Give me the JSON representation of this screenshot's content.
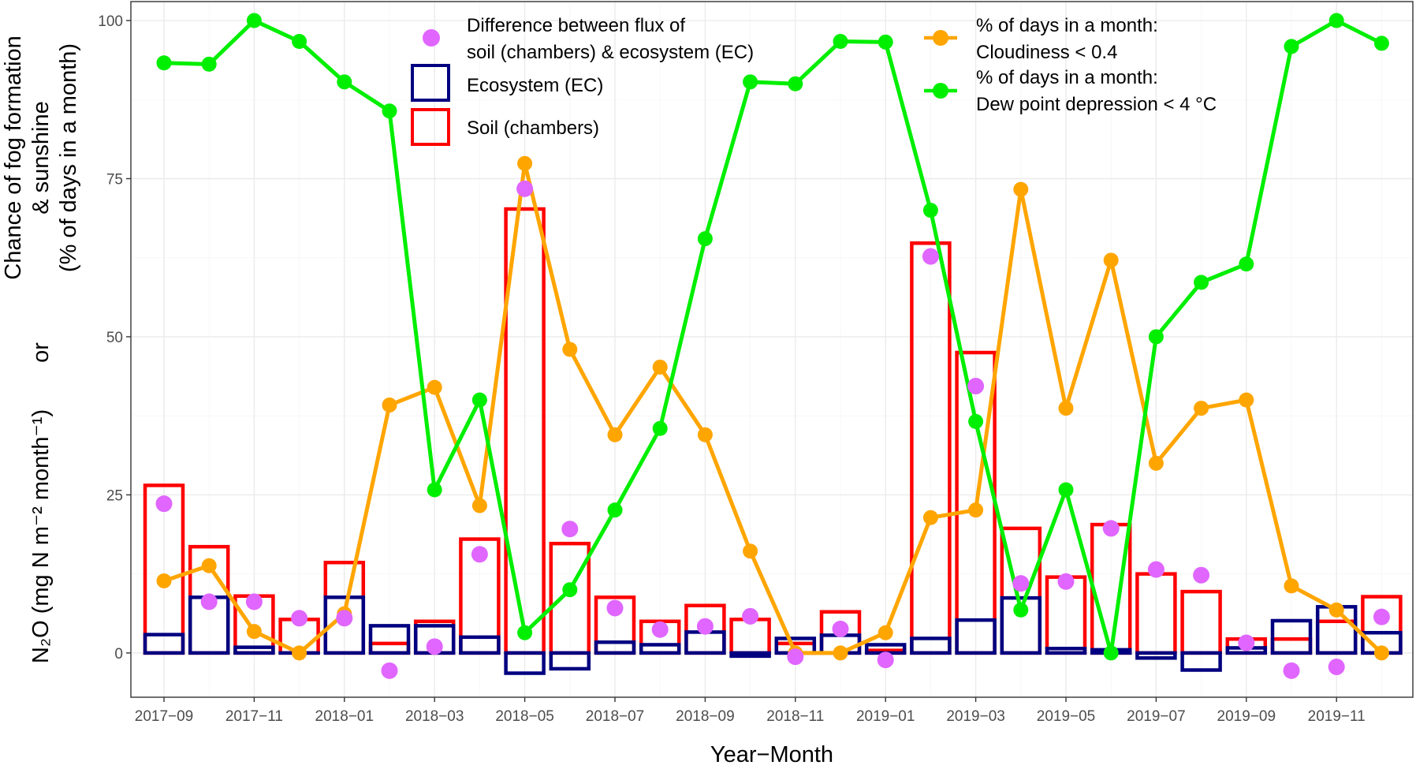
{
  "chart_data": {
    "type": "bar+line+scatter",
    "xlabel": "Year−Month",
    "ylabel_line1": "Chance of fog formation",
    "ylabel_line2": "& sunshine",
    "ylabel_line3": "(% of days in a month)",
    "ylabel_or": "or",
    "ylabel_n2o": "N₂O (mg N m⁻² month⁻¹)",
    "ylim": [
      -7,
      103
    ],
    "y_ticks": [
      0,
      25,
      50,
      75,
      100
    ],
    "y_tick_labels": [
      "0",
      "25",
      "50",
      "75",
      "100"
    ],
    "months": [
      "2017-09",
      "2017-10",
      "2017-11",
      "2017-12",
      "2018-01",
      "2018-02",
      "2018-03",
      "2018-04",
      "2018-05",
      "2018-06",
      "2018-07",
      "2018-08",
      "2018-09",
      "2018-10",
      "2018-11",
      "2018-12",
      "2019-01",
      "2019-02",
      "2019-03",
      "2019-04",
      "2019-05",
      "2019-06",
      "2019-07",
      "2019-08",
      "2019-09",
      "2019-10",
      "2019-11",
      "2019-12"
    ],
    "x_tick_labels": [
      "2017−09",
      "2017−11",
      "2018−01",
      "2018−03",
      "2018−05",
      "2018−07",
      "2018−09",
      "2018−11",
      "2019−01",
      "2019−03",
      "2019−05",
      "2019−07",
      "2019−09",
      "2019−11"
    ],
    "x_tick_index": [
      0,
      2,
      4,
      6,
      8,
      10,
      12,
      14,
      16,
      18,
      20,
      22,
      24,
      26
    ],
    "series": [
      {
        "name": "Soil (chambers)",
        "kind": "bar",
        "color": "#ff0000",
        "values": [
          26.5,
          16.8,
          9.0,
          5.3,
          14.3,
          1.5,
          5.0,
          18.0,
          70.2,
          17.3,
          8.8,
          5.0,
          7.5,
          5.3,
          1.5,
          6.5,
          0.4,
          64.8,
          47.5,
          19.7,
          12.0,
          20.3,
          12.5,
          9.7,
          2.2,
          2.2,
          5.0,
          8.9
        ]
      },
      {
        "name": "Ecosystem (EC)",
        "kind": "bar",
        "color": "#000080",
        "values": [
          2.9,
          8.8,
          0.9,
          0.0,
          8.8,
          4.3,
          4.3,
          2.5,
          -3.2,
          -2.5,
          1.7,
          1.3,
          3.3,
          -0.5,
          2.3,
          2.8,
          1.3,
          2.3,
          5.2,
          8.7,
          0.7,
          0.5,
          -0.8,
          -2.7,
          0.8,
          5.1,
          7.3,
          3.2
        ]
      },
      {
        "name": "Difference between flux of soil (chambers) & ecosystem (EC)",
        "kind": "scatter",
        "color": "#e066ff",
        "values": [
          23.6,
          8.1,
          8.1,
          5.5,
          5.5,
          -2.8,
          1.0,
          15.6,
          73.4,
          19.6,
          7.1,
          3.7,
          4.2,
          5.8,
          -0.6,
          3.8,
          -1.1,
          62.7,
          42.2,
          11.0,
          11.3,
          19.7,
          13.2,
          12.3,
          1.6,
          -2.8,
          -2.2,
          5.7
        ]
      },
      {
        "name": "% of days in a month: Cloudiness < 0.4",
        "kind": "line",
        "color": "#ffa500",
        "values": [
          11.4,
          13.8,
          3.4,
          0.0,
          6.2,
          39.2,
          42.0,
          23.3,
          77.4,
          48.0,
          34.5,
          45.2,
          34.5,
          16.1,
          0.0,
          0.0,
          3.2,
          21.4,
          22.6,
          73.3,
          38.7,
          62.1,
          30.0,
          38.7,
          40.0,
          10.6,
          6.8,
          0.0
        ]
      },
      {
        "name": "% of days in a month: Dew point depression < 4 °C",
        "kind": "line",
        "color": "#00ee00",
        "values": [
          93.3,
          93.1,
          100.0,
          96.7,
          90.3,
          85.7,
          25.8,
          40.0,
          3.2,
          10.0,
          22.6,
          35.5,
          65.5,
          90.3,
          90.0,
          96.7,
          96.6,
          70.0,
          36.6,
          6.8,
          25.8,
          0.0,
          50.0,
          58.6,
          61.5,
          95.9,
          100.0,
          96.4
        ]
      }
    ],
    "legend": {
      "scatter_label_line1": "Difference between flux of",
      "scatter_label_line2": "soil (chambers) & ecosystem (EC)",
      "ec_label": "Ecosystem (EC)",
      "soil_label": "Soil (chambers)",
      "cloud_label_line1": "% of days in a month:",
      "cloud_label_line2": "Cloudiness < 0.4",
      "dew_label_line1": "% of days in a month:",
      "dew_label_line2": "Dew point depression < 4 °C"
    }
  }
}
